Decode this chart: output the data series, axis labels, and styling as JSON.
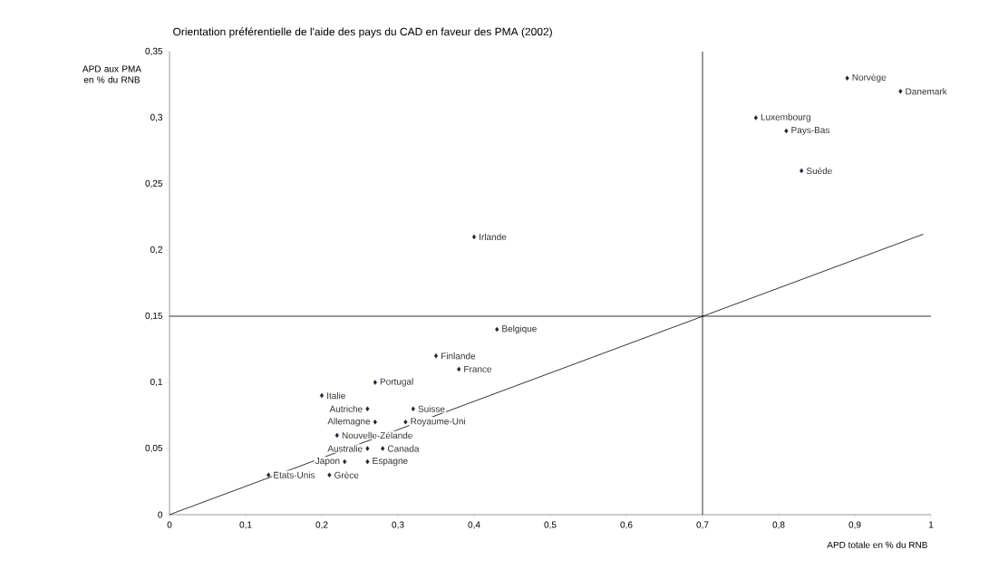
{
  "chart_data": {
    "type": "scatter",
    "title": "Orientation préférentielle de l'aide des pays du CAD en faveur des PMA (2002)",
    "xlabel": "APD totale en % du RNB",
    "ylabel": "APD aux PMA en % du RNB",
    "xlim": [
      0,
      1
    ],
    "ylim": [
      0,
      0.35
    ],
    "xticks": [
      0,
      {
        "value": 0.1,
        "label": "0,1"
      },
      {
        "value": 0.2,
        "label": "0,2"
      },
      {
        "value": 0.3,
        "label": "0,3"
      },
      {
        "value": 0.4,
        "label": "0,4"
      },
      {
        "value": 0.5,
        "label": "0,5"
      },
      {
        "value": 0.6,
        "label": "0,6"
      },
      {
        "value": 0.7,
        "label": "0,7"
      },
      {
        "value": 0.8,
        "label": "0,8"
      },
      {
        "value": 0.9,
        "label": "0,9"
      },
      1
    ],
    "yticks": [
      0,
      {
        "value": 0.05,
        "label": "0,05"
      },
      {
        "value": 0.1,
        "label": "0,1"
      },
      {
        "value": 0.15,
        "label": "0,15"
      },
      {
        "value": 0.2,
        "label": "0,2"
      },
      {
        "value": 0.25,
        "label": "0,25"
      },
      {
        "value": 0.3,
        "label": "0,3"
      },
      {
        "value": 0.35,
        "label": "0,35"
      }
    ],
    "marker": "diamond",
    "series": [
      {
        "color": "#1f1f2e",
        "x": [
          0.89,
          0.96,
          0.77,
          0.81,
          0.83,
          0.4,
          0.43,
          0.35,
          0.38,
          0.27,
          0.2,
          0.26,
          0.32,
          0.27,
          0.31,
          0.22,
          0.26,
          0.28,
          0.23,
          0.26,
          0.13,
          0.21
        ],
        "values": [
          0.33,
          0.32,
          0.3,
          0.29,
          0.26,
          0.21,
          0.14,
          0.12,
          0.11,
          0.1,
          0.09,
          0.08,
          0.08,
          0.07,
          0.07,
          0.06,
          0.05,
          0.05,
          0.04,
          0.04,
          0.03,
          0.03
        ]
      },
      {
        "type": "line",
        "marker": "none",
        "color": "#000000",
        "x": [
          0,
          0.99
        ],
        "values": [
          0,
          0.212
        ]
      }
    ],
    "ref_lines": [
      {
        "axis": "x",
        "value": 0.7,
        "color": "#000000"
      },
      {
        "axis": "y",
        "value": 0.15,
        "color": "#000000"
      }
    ],
    "annotations": [
      {
        "text": "Norvège",
        "x": 0.89,
        "y": 0.33
      },
      {
        "text": "Danemark",
        "x": 0.96,
        "y": 0.32
      },
      {
        "text": "Luxembourg",
        "x": 0.77,
        "y": 0.3
      },
      {
        "text": "Pays-Bas",
        "x": 0.81,
        "y": 0.29
      },
      {
        "text": "Suède",
        "x": 0.83,
        "y": 0.26
      },
      {
        "text": "Irlande",
        "x": 0.4,
        "y": 0.21
      },
      {
        "text": "Belgique",
        "x": 0.43,
        "y": 0.14
      },
      {
        "text": "Finlande",
        "x": 0.35,
        "y": 0.12
      },
      {
        "text": "France",
        "x": 0.38,
        "y": 0.11
      },
      {
        "text": "Portugal",
        "x": 0.27,
        "y": 0.1
      },
      {
        "text": "Italie",
        "x": 0.2,
        "y": 0.09
      },
      {
        "text": "Autriche",
        "x": 0.26,
        "y": 0.08
      },
      {
        "text": "Suisse",
        "x": 0.32,
        "y": 0.08
      },
      {
        "text": "Allemagne",
        "x": 0.27,
        "y": 0.07
      },
      {
        "text": "Royaume-Uni",
        "x": 0.31,
        "y": 0.07
      },
      {
        "text": "Nouvelle-Zélande",
        "x": 0.22,
        "y": 0.06
      },
      {
        "text": "Australie",
        "x": 0.26,
        "y": 0.05
      },
      {
        "text": "Canada",
        "x": 0.28,
        "y": 0.05
      },
      {
        "text": "Japon",
        "x": 0.23,
        "y": 0.04
      },
      {
        "text": "Espagne",
        "x": 0.26,
        "y": 0.04
      },
      {
        "text": "Etats-Unis",
        "x": 0.13,
        "y": 0.03
      },
      {
        "text": "Grèce",
        "x": 0.21,
        "y": 0.03
      }
    ]
  }
}
